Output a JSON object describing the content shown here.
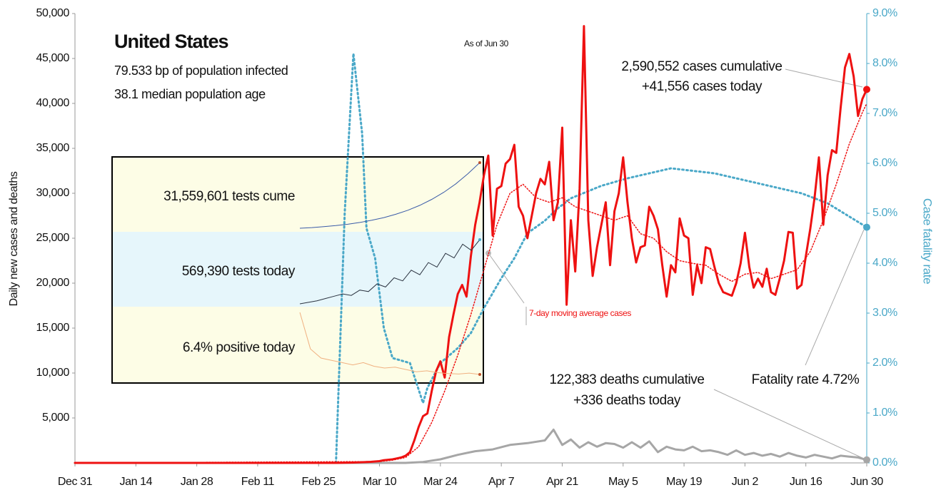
{
  "chart_data": {
    "type": "line",
    "title": "United States",
    "notes": [
      "79.533 bp of population infected",
      "38.1 median population age"
    ],
    "as_of": "As of Jun 30",
    "ylabel": "Daily new cases and deaths",
    "y2label": "Case fatality rate",
    "annotations": {
      "cases": [
        "2,590,552 cases cumulative",
        "+41,556 cases today"
      ],
      "deaths": [
        "122,383 deaths cumulative",
        "+336 deaths today"
      ],
      "fatality": "Fatality rate 4.72%"
    },
    "xlim": [
      0,
      182
    ],
    "xticks": [
      {
        "value": 0,
        "label": "Dec 31"
      },
      {
        "value": 14,
        "label": "Jan 14"
      },
      {
        "value": 28,
        "label": "Jan 28"
      },
      {
        "value": 42,
        "label": "Feb 11"
      },
      {
        "value": 56,
        "label": "Feb 25"
      },
      {
        "value": 70,
        "label": "Mar 10"
      },
      {
        "value": 84,
        "label": "Mar 24"
      },
      {
        "value": 98,
        "label": "Apr 7"
      },
      {
        "value": 112,
        "label": "Apr 21"
      },
      {
        "value": 126,
        "label": "May 5"
      },
      {
        "value": 140,
        "label": "May 19"
      },
      {
        "value": 154,
        "label": "Jun 2"
      },
      {
        "value": 168,
        "label": "Jun 16"
      },
      {
        "value": 182,
        "label": "Jun 30"
      }
    ],
    "ylim": [
      0,
      50000
    ],
    "yticks": [
      {
        "value": 5000,
        "label": "5,000"
      },
      {
        "value": 10000,
        "label": "10,000"
      },
      {
        "value": 15000,
        "label": "15,000"
      },
      {
        "value": 20000,
        "label": "20,000"
      },
      {
        "value": 25000,
        "label": "25,000"
      },
      {
        "value": 30000,
        "label": "30,000"
      },
      {
        "value": 35000,
        "label": "35,000"
      },
      {
        "value": 40000,
        "label": "40,000"
      },
      {
        "value": 45000,
        "label": "45,000"
      },
      {
        "value": 50000,
        "label": "50,000"
      }
    ],
    "y2lim": [
      0,
      9
    ],
    "y2ticks": [
      {
        "value": 0,
        "label": "0.0%"
      },
      {
        "value": 1,
        "label": "1.0%"
      },
      {
        "value": 2,
        "label": "2.0%"
      },
      {
        "value": 3,
        "label": "3.0%"
      },
      {
        "value": 4,
        "label": "4.0%"
      },
      {
        "value": 5,
        "label": "5.0%"
      },
      {
        "value": 6,
        "label": "6.0%"
      },
      {
        "value": 7,
        "label": "7.0%"
      },
      {
        "value": 8,
        "label": "8.0%"
      },
      {
        "value": 9,
        "label": "9.0%"
      }
    ],
    "series": [
      {
        "color": "#ee1111",
        "style": "solid",
        "width": 3,
        "end_marker": true,
        "x": [
          0,
          60,
          61,
          62,
          63,
          64,
          65,
          66,
          67,
          68,
          69,
          70,
          71,
          72,
          73,
          74,
          75,
          76,
          77,
          78,
          79,
          80,
          81,
          82,
          83,
          84,
          85,
          86,
          87,
          88,
          89,
          90,
          91,
          92,
          93,
          94,
          95,
          96,
          97,
          98,
          99,
          100,
          101,
          102,
          103,
          104,
          105,
          106,
          107,
          108,
          109,
          110,
          111,
          112,
          113,
          114,
          115,
          116,
          117,
          118,
          119,
          120,
          121,
          122,
          123,
          124,
          125,
          126,
          127,
          128,
          129,
          130,
          131,
          132,
          133,
          134,
          135,
          136,
          137,
          138,
          139,
          140,
          141,
          142,
          143,
          144,
          145,
          146,
          147,
          148,
          149,
          150,
          151,
          152,
          153,
          154,
          155,
          156,
          157,
          158,
          159,
          160,
          161,
          162,
          163,
          164,
          165,
          166,
          167,
          168,
          169,
          170,
          171,
          172,
          173,
          174,
          175,
          176,
          177,
          178,
          179,
          180,
          181,
          182
        ],
        "values": [
          0,
          0,
          10,
          20,
          30,
          40,
          60,
          80,
          100,
          120,
          160,
          200,
          300,
          350,
          400,
          500,
          600,
          800,
          1200,
          2500,
          4000,
          5200,
          5500,
          8000,
          10200,
          11300,
          9500,
          14000,
          16500,
          18800,
          19800,
          18500,
          23000,
          26500,
          29000,
          32000,
          34200,
          25300,
          30500,
          30800,
          33300,
          33800,
          35400,
          28500,
          27500,
          25000,
          27500,
          30000,
          31600,
          31000,
          33500,
          27000,
          29000,
          37300,
          17600,
          27000,
          21300,
          30500,
          48600,
          27000,
          20800,
          24000,
          26500,
          29000,
          22000,
          28000,
          30000,
          34000,
          29000,
          25000,
          22300,
          24000,
          24200,
          28500,
          27500,
          26000,
          22000,
          18500,
          22000,
          21200,
          27200,
          25300,
          25000,
          18700,
          22000,
          20000,
          24000,
          23800,
          21800,
          20000,
          19000,
          18800,
          18600,
          20000,
          22200,
          25600,
          21800,
          19500,
          20500,
          19600,
          21600,
          19000,
          18700,
          20500,
          22500,
          25700,
          25600,
          19400,
          19800,
          23000,
          26000,
          29500,
          34000,
          26500,
          32000,
          34800,
          34500,
          39500,
          44000,
          45500,
          43000,
          38600,
          40500,
          41556
        ]
      },
      {
        "name": "7-day moving average cases",
        "color": "#ee1111",
        "style": "dotted",
        "width": 1.5,
        "x": [
          0,
          70,
          73,
          76,
          79,
          82,
          85,
          88,
          91,
          94,
          97,
          100,
          103,
          106,
          109,
          112,
          115,
          118,
          121,
          124,
          127,
          130,
          133,
          136,
          139,
          142,
          145,
          148,
          151,
          154,
          157,
          160,
          163,
          166,
          169,
          172,
          175,
          178,
          181,
          182
        ],
        "values": [
          0,
          150,
          300,
          600,
          1800,
          4500,
          8000,
          12000,
          16500,
          21500,
          26500,
          30000,
          31000,
          29500,
          29000,
          29500,
          28500,
          28000,
          27500,
          27000,
          27500,
          25500,
          25000,
          23500,
          22500,
          22200,
          22000,
          21000,
          20200,
          21000,
          21200,
          20500,
          21000,
          21500,
          23500,
          27000,
          31000,
          35500,
          39000,
          40000
        ]
      },
      {
        "color": "#a6a6a6",
        "style": "solid",
        "width": 3,
        "end_marker": true,
        "x": [
          0,
          76,
          80,
          84,
          88,
          92,
          96,
          100,
          104,
          108,
          110,
          112,
          114,
          116,
          118,
          120,
          122,
          124,
          126,
          128,
          130,
          132,
          134,
          136,
          138,
          140,
          142,
          144,
          146,
          148,
          150,
          152,
          154,
          156,
          158,
          160,
          162,
          164,
          166,
          168,
          170,
          172,
          174,
          176,
          178,
          180,
          182
        ],
        "values": [
          0,
          0,
          100,
          400,
          900,
          1300,
          1500,
          2000,
          2200,
          2500,
          3700,
          2000,
          2600,
          1700,
          2300,
          1800,
          2200,
          2100,
          1700,
          2300,
          1700,
          2400,
          1200,
          1800,
          1500,
          1400,
          1800,
          1300,
          1400,
          1200,
          900,
          1400,
          900,
          1100,
          800,
          1000,
          700,
          1100,
          800,
          600,
          900,
          700,
          500,
          800,
          700,
          600,
          336
        ]
      },
      {
        "color": "#4aa8c8",
        "style": "dotted",
        "width": 3,
        "axis": "y2",
        "end_marker": true,
        "x": [
          60,
          62,
          64,
          66,
          67,
          69,
          71,
          73,
          75,
          77,
          80,
          81,
          84,
          88,
          91,
          94,
          98,
          101,
          104,
          108,
          111,
          114,
          121,
          127,
          137,
          147,
          157,
          167,
          173,
          182
        ],
        "values": [
          0,
          5.0,
          8.2,
          6.6,
          4.7,
          4.1,
          2.7,
          2.1,
          2.05,
          2.0,
          1.2,
          1.5,
          2.0,
          2.3,
          2.6,
          3.1,
          3.7,
          4.1,
          4.6,
          4.85,
          5.1,
          5.3,
          5.55,
          5.7,
          5.9,
          5.8,
          5.6,
          5.4,
          5.2,
          4.72
        ]
      }
    ],
    "inset": {
      "series": [
        {
          "label": "31,559,601 tests cume",
          "color": "#3a5ba8",
          "values": [
            2000000,
            2300000,
            2700000,
            3200000,
            3800000,
            4600000,
            5600000,
            6800000,
            8300000,
            10100000,
            12300000,
            15000000,
            18200000,
            22000000,
            26500000,
            31559601
          ]
        },
        {
          "label": "569,390 tests today",
          "color": "#2b3340",
          "values": [
            150000,
            160000,
            170000,
            185000,
            200000,
            215000,
            205000,
            240000,
            230000,
            280000,
            260000,
            320000,
            300000,
            370000,
            340000,
            420000,
            390000,
            480000,
            450000,
            540000,
            500000,
            569390
          ]
        },
        {
          "label": "6.4% positive today",
          "color": "#f0b080",
          "values": [
            20,
            12,
            10,
            9.5,
            9,
            8.5,
            9,
            8.2,
            7.8,
            8,
            7.5,
            7,
            7.2,
            6.8,
            6.6,
            6.5,
            6.7,
            6.4
          ]
        }
      ]
    }
  }
}
